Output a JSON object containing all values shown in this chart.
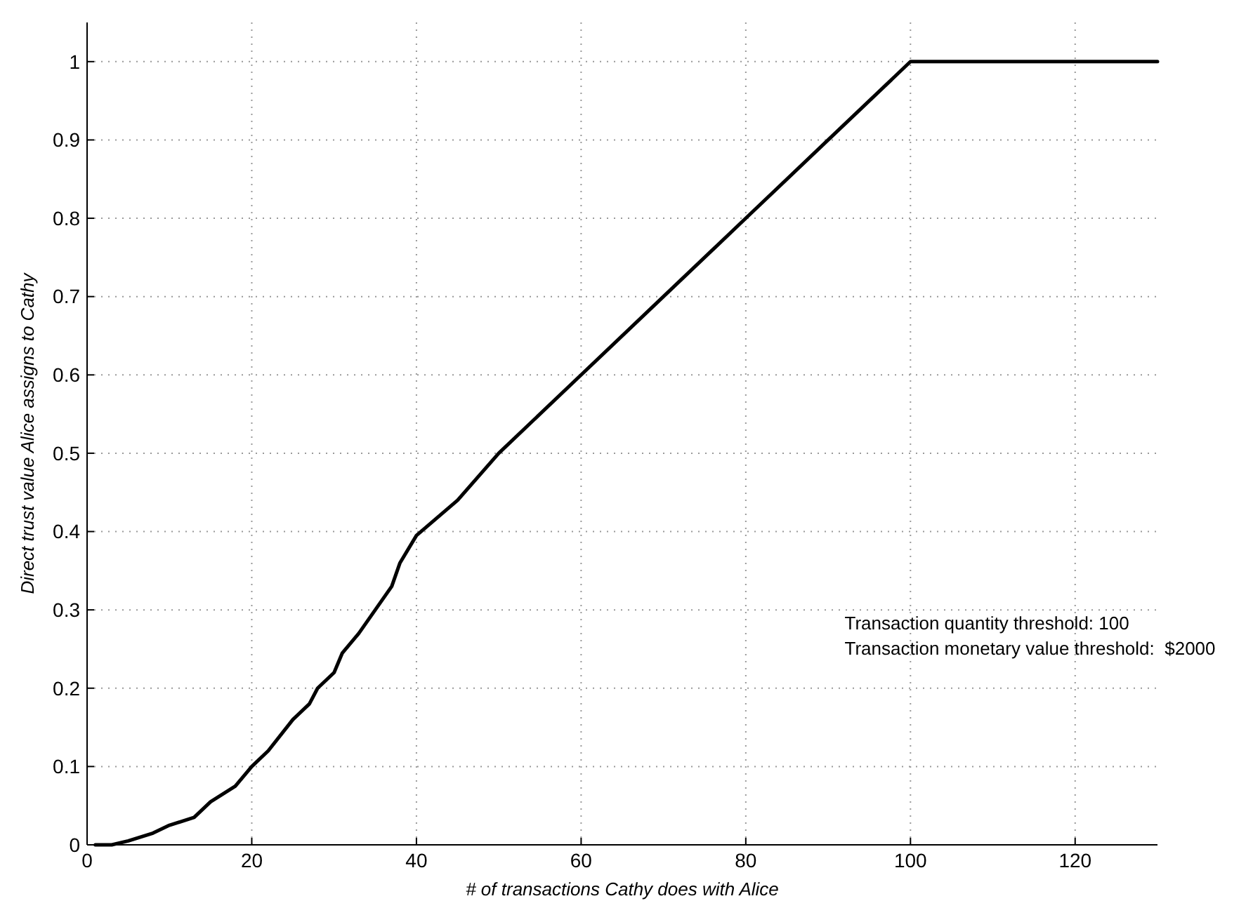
{
  "chart_data": {
    "type": "line",
    "xlabel": "# of transactions Cathy does with Alice",
    "ylabel": "Direct trust value Alice assigns to Cathy",
    "x": [
      1,
      3,
      5,
      8,
      10,
      13,
      15,
      18,
      20,
      22,
      25,
      27,
      28,
      30,
      31,
      33,
      35,
      37,
      38,
      40,
      45,
      50,
      60,
      70,
      80,
      90,
      100,
      130
    ],
    "series": [
      {
        "color": "#000000",
        "values": [
          0,
          0,
          0.005,
          0.015,
          0.025,
          0.035,
          0.055,
          0.075,
          0.1,
          0.12,
          0.16,
          0.18,
          0.2,
          0.22,
          0.245,
          0.27,
          0.3,
          0.33,
          0.36,
          0.395,
          0.44,
          0.5,
          0.6,
          0.7,
          0.8,
          0.9,
          1,
          1
        ]
      }
    ],
    "xlim": [
      0,
      130
    ],
    "xticks": [
      0,
      20,
      40,
      60,
      80,
      100,
      120
    ],
    "ylim": [
      0,
      1.05
    ],
    "yticks": [
      0,
      0.1,
      0.2,
      0.3,
      0.4,
      0.5,
      0.6,
      0.7,
      0.8,
      0.9,
      1
    ],
    "grid": true,
    "marker": "none",
    "line_style": "solid",
    "annotations": [
      "Transaction quantity threshold: 100",
      "Transaction monetary value threshold:  $2000"
    ]
  }
}
